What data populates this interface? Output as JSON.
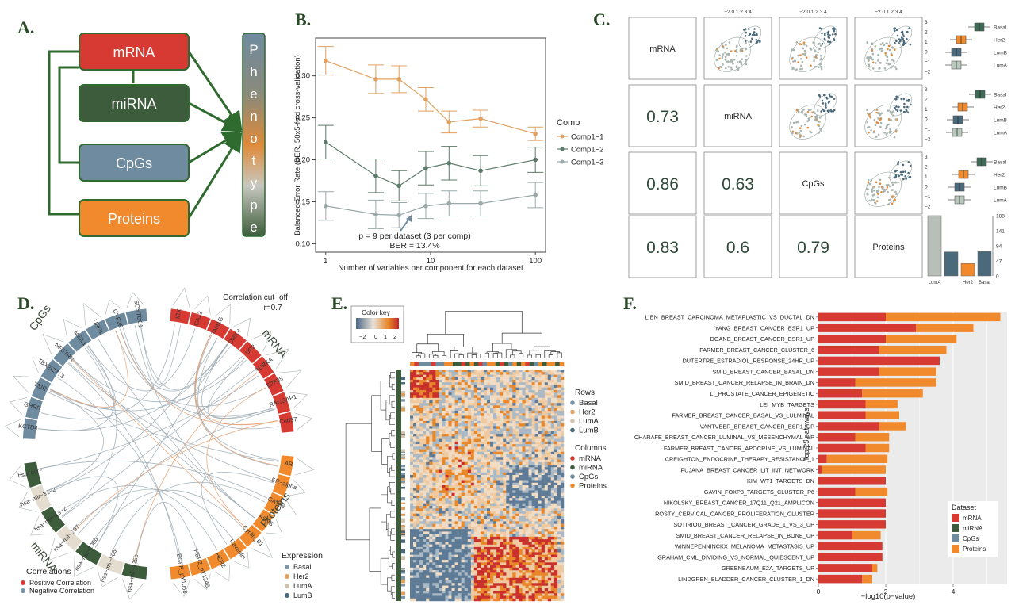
{
  "panels": {
    "a": {
      "letter": "A.",
      "boxes": [
        {
          "label": "mRNA",
          "color": "#d63a32"
        },
        {
          "label": "miRNA",
          "color": "#3d5c3c"
        },
        {
          "label": "CpGs",
          "color": "#6f8ba0"
        },
        {
          "label": "Proteins",
          "color": "#f08a2c"
        }
      ],
      "phenotype_letters": [
        "P",
        "h",
        "e",
        "n",
        "o",
        "t",
        "y",
        "p",
        "e"
      ]
    },
    "b": {
      "letter": "B.",
      "chart_data": {
        "type": "line",
        "xlabel": "Number of variables per component for each dataset",
        "ylabel": "Balanced Error Rate (BER, 50x5-fold cross-validation)",
        "x_scale": "log",
        "xticks": [
          "1",
          "10",
          "100"
        ],
        "yticks": [
          "0.10",
          "0.15",
          "0.20",
          "0.25",
          "0.30"
        ],
        "ylim": [
          0.09,
          0.345
        ],
        "legend_title": "Comp",
        "x": [
          1,
          3,
          5,
          9,
          15,
          30,
          100
        ],
        "series": [
          {
            "name": "Comp1−1",
            "color": "#e0a060",
            "values": [
              0.318,
              0.296,
              0.296,
              0.272,
              0.245,
              0.249,
              0.231
            ],
            "err": [
              0.017,
              0.017,
              0.016,
              0.014,
              0.013,
              0.01,
              0.008
            ]
          },
          {
            "name": "Comp1−2",
            "color": "#5c7a6a",
            "values": [
              0.221,
              0.181,
              0.169,
              0.19,
              0.196,
              0.187,
              0.2
            ],
            "err": [
              0.02,
              0.02,
              0.018,
              0.02,
              0.02,
              0.018,
              0.015
            ]
          },
          {
            "name": "Comp1−3",
            "color": "#9aa8a8",
            "values": [
              0.145,
              0.135,
              0.134,
              0.145,
              0.148,
              0.148,
              0.158
            ],
            "err": [
              0.017,
              0.017,
              0.015,
              0.015,
              0.015,
              0.015,
              0.015
            ]
          }
        ],
        "annotation": {
          "x": 5,
          "y": 0.134,
          "line1": "p = 9 per dataset (3 per comp)",
          "line2": "BER = 13.4%"
        }
      }
    },
    "c": {
      "letter": "C.",
      "diag": [
        "mRNA",
        "miRNA",
        "CpGs",
        "Proteins"
      ],
      "corr": [
        {
          "row": 1,
          "col": 0,
          "value": "0.73"
        },
        {
          "row": 2,
          "col": 0,
          "value": "0.86"
        },
        {
          "row": 2,
          "col": 1,
          "value": "0.63"
        },
        {
          "row": 3,
          "col": 0,
          "value": "0.83"
        },
        {
          "row": 3,
          "col": 1,
          "value": "0.6"
        },
        {
          "row": 3,
          "col": 2,
          "value": "0.79"
        }
      ],
      "top_ticks": "−2  0  1  2  3  4",
      "right_ticks": [
        "3",
        "2",
        "1",
        "0",
        "−1",
        "−2"
      ],
      "box_groups": [
        "Basal",
        "Her2",
        "LumB",
        "LumA"
      ],
      "bar_chart": {
        "type": "bar",
        "categories": [
          "LumA",
          "",
          "Her2",
          "Basal"
        ],
        "values": [
          188,
          75,
          39,
          76
        ],
        "yticks": [
          "188",
          "141",
          "94",
          "47",
          "0"
        ],
        "colors": [
          "#b8bfb9",
          "#4a6a7c",
          "#f08a2c",
          "#4a6a7c"
        ]
      }
    },
    "d": {
      "letter": "D.",
      "cutoff_line1": "Correlation cut−off",
      "cutoff_line2": "r=0.7",
      "block_labels": [
        "CpGs",
        "mRNA",
        "miRNA",
        "Proteins"
      ],
      "cpg_genes": [
        "KCTD4",
        "GHRR",
        "TSIR",
        "TBX2IZ7T3",
        "NFSTRR",
        "MEIL1",
        "UNGL",
        "CYP2R",
        "SOSTDC1"
      ],
      "mrna_genes": [
        "IRX",
        "CA12",
        "FAM1G",
        "ORIOI",
        "UP2",
        "AURKA",
        "E2F35",
        "RACGAP1",
        "Corf37"
      ],
      "mirna_genes": [
        "hsa−mir−125b",
        "hsa−mir−505",
        "hsa−mir−106b",
        "hsa−mir−197",
        "hsa−mir−18−2",
        "hsa−mir−32−2",
        "hsa−mir−"
      ],
      "protein_genes": [
        "AR",
        "ER−alpha",
        "GATA3",
        "ASNS",
        "Cyclin_B1",
        "Caveolin",
        "HER2",
        "HER2_pY1248",
        "EGFR_pY1068"
      ],
      "correlations_title": "Correlations",
      "correlations": [
        {
          "label": "Positive Correlation",
          "color": "#d63a32"
        },
        {
          "label": "Negative Correlation",
          "color": "#7a96a8"
        }
      ],
      "expression_title": "Expression",
      "expression": [
        {
          "label": "Basal",
          "color": "#7a96a8"
        },
        {
          "label": "Her2",
          "color": "#e0a060"
        },
        {
          "label": "LumA",
          "color": "#cfc5ae"
        },
        {
          "label": "LumB",
          "color": "#4a6a7c"
        }
      ]
    },
    "e": {
      "letter": "E.",
      "color_key_title": "Color key",
      "color_key_ticks": [
        "−2",
        "0",
        "1",
        "2"
      ],
      "rows_title": "Rows",
      "rows": [
        {
          "label": "Basal",
          "color": "#7a96a8"
        },
        {
          "label": "Her2",
          "color": "#e0a060"
        },
        {
          "label": "LumA",
          "color": "#cfc5ae"
        },
        {
          "label": "LumB",
          "color": "#4a6a7c"
        }
      ],
      "columns_title": "Columns",
      "columns": [
        {
          "label": "mRNA",
          "color": "#d63a32"
        },
        {
          "label": "miRNA",
          "color": "#3d5c3c"
        },
        {
          "label": "CpGs",
          "color": "#6f8ba0"
        },
        {
          "label": "Proteins",
          "color": "#f08a2c"
        }
      ]
    },
    "f": {
      "letter": "F.",
      "chart_data": {
        "type": "bar",
        "orientation": "horizontal",
        "stacked": true,
        "ylabel": "Top 25 pathways",
        "xlabel": "−log10(p−value)",
        "xticks": [
          "0",
          "2",
          "4"
        ],
        "xlim": [
          0,
          5.6
        ],
        "legend_title": "Dataset",
        "legend": [
          {
            "name": "mRNA",
            "color": "#d63a32"
          },
          {
            "name": "miRNA",
            "color": "#3d5c3c"
          },
          {
            "name": "CpGs",
            "color": "#6f8ba0"
          },
          {
            "name": "Proteins",
            "color": "#f08a2c"
          }
        ],
        "categories": [
          "LIEN_BREAST_CARCINOMA_METAPLASTIC_VS_DUCTAL_DN",
          "YANG_BREAST_CANCER_ESR1_UP",
          "DOANE_BREAST_CANCER_ESR1_UP",
          "FARMER_BREAST_CANCER_CLUSTER_6",
          "DUTERTRE_ESTRADIOL_RESPONSE_24HR_UP",
          "SMID_BREAST_CANCER_BASAL_DN",
          "SMID_BREAST_CANCER_RELAPSE_IN_BRAIN_DN",
          "LI_PROSTATE_CANCER_EPIGENETIC",
          "LEI_MYB_TARGETS",
          "FARMER_BREAST_CANCER_BASAL_VS_LULMINAL",
          "VANTVEER_BREAST_CANCER_ESR1_UP",
          "CHARAFE_BREAST_CANCER_LUMINAL_VS_MESENCHYMAL_UP",
          "FARMER_BREAST_CANCER_APOCRINE_VS_LUMINAL",
          "CREIGHTON_ENDOCRINE_THERAPY_RESISTANCE_1",
          "PUJANA_BREAST_CANCER_LIT_INT_NETWORK",
          "KIM_WT1_TARGETS_DN",
          "GAVIN_FOXP3_TARGETS_CLUSTER_P6",
          "NIKOLSKY_BREAST_CANCER_17Q11_Q21_AMPLICON",
          "ROSTY_CERVICAL_CANCER_PROLIFERATION_CLUSTER",
          "SOTIRIOU_BREAST_CANCER_GRADE_1_VS_3_UP",
          "SMID_BREAST_CANCER_RELAPSE_IN_BONE_UP",
          "WINNEPENNINCKX_MELANOMA_METASTASIS_UP",
          "GRAHAM_CML_DIVIDING_VS_NORMAL_QUIESCENT_UP",
          "GREENBAUM_E2A_TARGETS_UP",
          "LINDGREN_BLADDER_CANCER_CLUSTER_1_DN"
        ],
        "series": [
          {
            "name": "mRNA",
            "values": [
              2.0,
              2.9,
              2.0,
              1.8,
              3.6,
              1.8,
              1.1,
              1.3,
              1.4,
              1.4,
              1.8,
              1.1,
              1.4,
              0.25,
              0.1,
              2.0,
              1.1,
              2.0,
              2.0,
              2.0,
              1.0,
              1.9,
              1.9,
              1.6,
              1.3
            ]
          },
          {
            "name": "Proteins",
            "values": [
              3.4,
              1.7,
              2.1,
              2.0,
              0.0,
              1.7,
              2.4,
              1.8,
              0.95,
              1.0,
              0.8,
              1.0,
              0.7,
              1.8,
              1.9,
              0.0,
              0.95,
              0.0,
              0.0,
              0.0,
              0.85,
              0.0,
              0.0,
              0.15,
              0.3
            ]
          }
        ]
      }
    }
  }
}
